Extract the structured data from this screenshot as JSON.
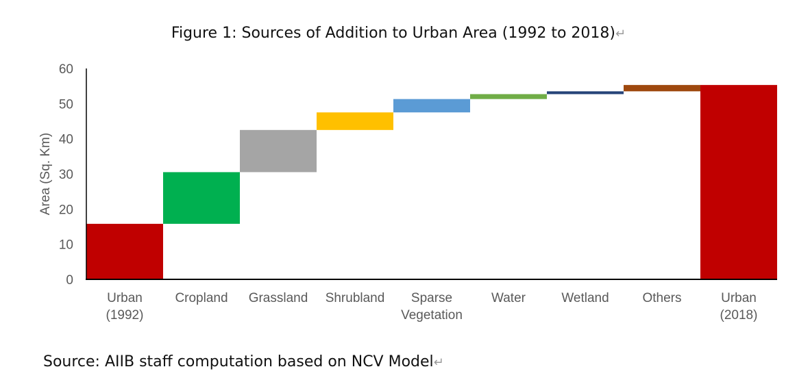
{
  "figure": {
    "title": "Figure 1: Sources of Addition to Urban Area (1992 to 2018)",
    "source": "Source: AIIB staff computation based on NCV Model",
    "paragraph_mark": "↵"
  },
  "chart_data": {
    "type": "bar",
    "subtype": "waterfall",
    "title": "Figure 1: Sources of Addition to Urban Area (1992 to 2018)",
    "xlabel": "",
    "ylabel": "Area (Sq. Km)",
    "ylim": [
      0,
      60
    ],
    "yticks": [
      0,
      10,
      20,
      30,
      40,
      50,
      60
    ],
    "grid": false,
    "legend": "none",
    "categories": [
      [
        "Urban",
        "(1992)"
      ],
      [
        "Cropland"
      ],
      [
        "Grassland"
      ],
      [
        "Shrubland"
      ],
      [
        "Sparse",
        "Vegetation"
      ],
      [
        "Water"
      ],
      [
        "Wetland"
      ],
      [
        "Others"
      ],
      [
        "Urban",
        "(2018)"
      ]
    ],
    "bars": [
      {
        "category": "Urban (1992)",
        "kind": "total",
        "start": 0,
        "value": 15.8,
        "color": "#C00000"
      },
      {
        "category": "Cropland",
        "kind": "increase",
        "start": 15.8,
        "value": 14.7,
        "color": "#00B050"
      },
      {
        "category": "Grassland",
        "kind": "increase",
        "start": 30.5,
        "value": 12.0,
        "color": "#A5A5A5"
      },
      {
        "category": "Shrubland",
        "kind": "increase",
        "start": 42.5,
        "value": 5.0,
        "color": "#FFC000"
      },
      {
        "category": "Sparse Vegetation",
        "kind": "increase",
        "start": 47.5,
        "value": 3.8,
        "color": "#5B9BD5"
      },
      {
        "category": "Water",
        "kind": "increase",
        "start": 51.3,
        "value": 1.4,
        "color": "#70AD47"
      },
      {
        "category": "Wetland",
        "kind": "increase",
        "start": 52.7,
        "value": 0.8,
        "color": "#264478"
      },
      {
        "category": "Others",
        "kind": "increase",
        "start": 53.5,
        "value": 1.8,
        "color": "#9E480E"
      },
      {
        "category": "Urban (2018)",
        "kind": "total",
        "start": 0,
        "value": 55.3,
        "color": "#C00000"
      }
    ]
  }
}
